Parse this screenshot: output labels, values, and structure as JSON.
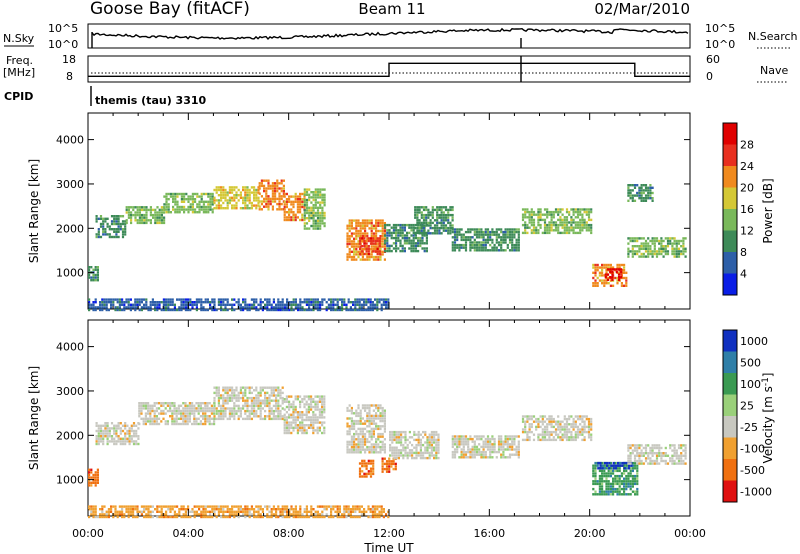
{
  "header": {
    "station": "Goose Bay (fitACF)",
    "beam": "Beam 11",
    "date": "02/Mar/2010"
  },
  "status_panels": {
    "nsky": {
      "label": "N.Sky",
      "tick_top": "10^5",
      "tick_bottom": "10^0",
      "right_label": "N.Search",
      "right_tick_top": "10^5",
      "right_tick_bottom": "10^0"
    },
    "freq": {
      "label_line1": "Freq.",
      "label_line2": "[MHz]",
      "tick_top": "18",
      "tick_bottom": "8",
      "right_label": "Nave",
      "right_tick_top": "60",
      "right_tick_bottom": "0",
      "freq_steps": [
        {
          "x": 0,
          "y": 10.2
        },
        {
          "x": 12.0,
          "y": 10.2
        },
        {
          "x": 12.0,
          "y": 15.2
        },
        {
          "x": 21.8,
          "y": 15.2
        },
        {
          "x": 21.8,
          "y": 10.2
        },
        {
          "x": 24,
          "y": 10.2
        }
      ]
    },
    "cpid": {
      "label": "CPID",
      "text": "themis (tau) 3310"
    }
  },
  "chart_data": [
    {
      "type": "heatmap",
      "name": "power",
      "ylabel": "Slant Range [km]",
      "xlabel": "",
      "ylim": [
        180,
        4600
      ],
      "yticks": [
        "1000",
        "2000",
        "3000",
        "4000"
      ],
      "colorbar_label": "Power [dB]",
      "colorbar_ticks": [
        "4",
        "8",
        "12",
        "16",
        "20",
        "24",
        "28"
      ],
      "colors": [
        "#0a1ee6",
        "#2d5fa8",
        "#3d8a58",
        "#79b85a",
        "#d4c836",
        "#f08a1e",
        "#e83020",
        "#e00000"
      ],
      "bands": [
        {
          "x": [
            0.0,
            0.4
          ],
          "y": [
            850,
            1150
          ],
          "level": 2
        },
        {
          "x": [
            0.3,
            1.5
          ],
          "y": [
            1800,
            2300
          ],
          "level": 2
        },
        {
          "x": [
            1.5,
            3.0
          ],
          "y": [
            2100,
            2500
          ],
          "level": 3
        },
        {
          "x": [
            3.0,
            5.0
          ],
          "y": [
            2350,
            2800
          ],
          "level": 3
        },
        {
          "x": [
            5.0,
            6.8
          ],
          "y": [
            2450,
            2950
          ],
          "level": 4
        },
        {
          "x": [
            6.8,
            7.8
          ],
          "y": [
            2450,
            3100
          ],
          "level": 5
        },
        {
          "x": [
            7.8,
            8.6
          ],
          "y": [
            2200,
            2800
          ],
          "level": 5
        },
        {
          "x": [
            8.6,
            9.4
          ],
          "y": [
            2000,
            2900
          ],
          "level": 3
        },
        {
          "x": [
            10.3,
            11.8
          ],
          "y": [
            1300,
            2200
          ],
          "level": 5
        },
        {
          "x": [
            10.8,
            11.6
          ],
          "y": [
            1400,
            1800
          ],
          "level": 6
        },
        {
          "x": [
            11.8,
            13.5
          ],
          "y": [
            1500,
            2100
          ],
          "level": 2
        },
        {
          "x": [
            13.0,
            14.5
          ],
          "y": [
            1900,
            2500
          ],
          "level": 2
        },
        {
          "x": [
            14.5,
            17.2
          ],
          "y": [
            1500,
            2000
          ],
          "level": 2
        },
        {
          "x": [
            17.3,
            20.1
          ],
          "y": [
            1900,
            2450
          ],
          "level": 3
        },
        {
          "x": [
            20.1,
            21.5
          ],
          "y": [
            700,
            1200
          ],
          "level": 5
        },
        {
          "x": [
            20.6,
            21.3
          ],
          "y": [
            850,
            1100
          ],
          "level": 7
        },
        {
          "x": [
            21.5,
            23.8
          ],
          "y": [
            1350,
            1800
          ],
          "level": 3
        },
        {
          "x": [
            21.5,
            22.5
          ],
          "y": [
            2600,
            3000
          ],
          "level": 2
        },
        {
          "x": [
            0.0,
            12.0
          ],
          "y": [
            180,
            420
          ],
          "level": 1
        }
      ]
    },
    {
      "type": "heatmap",
      "name": "velocity",
      "ylabel": "Slant Range [km]",
      "xlabel": "Time UT",
      "ylim": [
        180,
        4600
      ],
      "yticks": [
        "1000",
        "2000",
        "3000",
        "4000"
      ],
      "xticks": [
        "00:00",
        "04:00",
        "08:00",
        "12:00",
        "16:00",
        "20:00",
        "00:00"
      ],
      "xlim": [
        0,
        24
      ],
      "colorbar_label": "Velocity [m s^-1]",
      "colorbar_ticks": [
        "1000",
        "500",
        "100",
        "25",
        "-25",
        "-100",
        "-500",
        "-1000"
      ],
      "colors": [
        "#1030c0",
        "#2f7fa8",
        "#3a9a52",
        "#9ad07a",
        "#c8c8c0",
        "#f0a030",
        "#f07010",
        "#e01010"
      ],
      "bands": [
        {
          "x": [
            0.0,
            0.4
          ],
          "y": [
            850,
            1250
          ],
          "level": 6
        },
        {
          "x": [
            0.3,
            2.0
          ],
          "y": [
            1800,
            2300
          ],
          "level": 4
        },
        {
          "x": [
            2.0,
            5.0
          ],
          "y": [
            2250,
            2750
          ],
          "level": 4
        },
        {
          "x": [
            5.0,
            7.8
          ],
          "y": [
            2350,
            3100
          ],
          "level": 4
        },
        {
          "x": [
            7.8,
            9.4
          ],
          "y": [
            2050,
            2900
          ],
          "level": 4
        },
        {
          "x": [
            10.3,
            11.8
          ],
          "y": [
            1600,
            2700
          ],
          "level": 4
        },
        {
          "x": [
            10.8,
            11.4
          ],
          "y": [
            1050,
            1450
          ],
          "level": 6
        },
        {
          "x": [
            11.7,
            12.3
          ],
          "y": [
            1200,
            1500
          ],
          "level": 6
        },
        {
          "x": [
            12.0,
            14.0
          ],
          "y": [
            1500,
            2100
          ],
          "level": 4
        },
        {
          "x": [
            14.5,
            17.2
          ],
          "y": [
            1500,
            2000
          ],
          "level": 4
        },
        {
          "x": [
            17.3,
            20.1
          ],
          "y": [
            1900,
            2450
          ],
          "level": 4
        },
        {
          "x": [
            20.1,
            21.9
          ],
          "y": [
            650,
            1400
          ],
          "level": 2
        },
        {
          "x": [
            20.3,
            21.7
          ],
          "y": [
            1250,
            1400
          ],
          "level": 0
        },
        {
          "x": [
            21.5,
            23.8
          ],
          "y": [
            1350,
            1800
          ],
          "level": 4
        },
        {
          "x": [
            0.0,
            12.0
          ],
          "y": [
            180,
            420
          ],
          "level": 5
        }
      ]
    }
  ]
}
